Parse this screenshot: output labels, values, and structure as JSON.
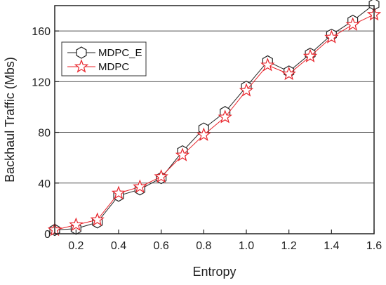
{
  "chart_data": {
    "type": "line",
    "xlabel": "Entropy",
    "ylabel": "Backhaul Traffic (Mbs)",
    "xlim": [
      0.1,
      1.6
    ],
    "ylim": [
      0,
      180
    ],
    "xticks": [
      0.2,
      0.4,
      0.6,
      0.8,
      1.0,
      1.2,
      1.4,
      1.6
    ],
    "xtick_labels": [
      "0.2",
      "0.4",
      "0.6",
      "0.8",
      "1.0",
      "1.2",
      "1.4",
      "1.6"
    ],
    "yticks": [
      0,
      40,
      80,
      120,
      160
    ],
    "ytick_labels": [
      "0",
      "40",
      "80",
      "120",
      "160"
    ],
    "grid": "horizontal",
    "legend": "upper-left",
    "x": [
      0.1,
      0.2,
      0.3,
      0.4,
      0.5,
      0.6,
      0.7,
      0.8,
      0.9,
      1.0,
      1.1,
      1.2,
      1.3,
      1.4,
      1.5,
      1.6
    ],
    "series": [
      {
        "name": "MDPC_E",
        "marker": "hexagon",
        "color": "#222222",
        "values": [
          3,
          4,
          9,
          30,
          35,
          44,
          65,
          83,
          96,
          116,
          136,
          128,
          142,
          157,
          168,
          181
        ]
      },
      {
        "name": "MDPC",
        "marker": "star",
        "color": "#e8232a",
        "values": [
          3,
          7,
          11,
          32,
          37,
          45,
          62,
          78,
          92,
          113,
          133,
          126,
          140,
          155,
          165,
          173
        ]
      }
    ]
  }
}
